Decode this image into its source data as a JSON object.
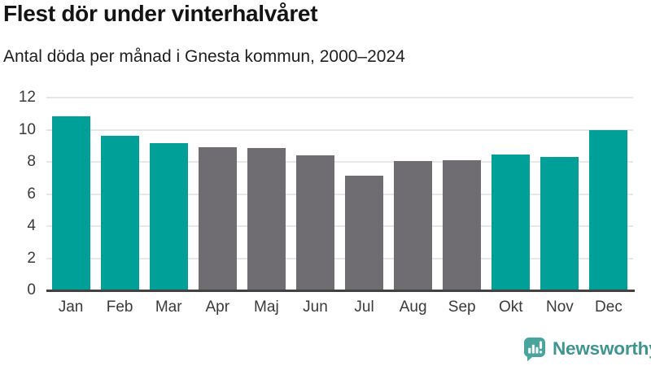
{
  "header": {
    "title": "Flest dör under vinterhalvåret",
    "subtitle": "Antal döda per månad i Gnesta kommun, 2000–2024"
  },
  "chart_data": {
    "type": "bar",
    "title": "Flest dör under vinterhalvåret",
    "subtitle": "Antal döda per månad i Gnesta kommun, 2000–2024",
    "categories": [
      "Jan",
      "Feb",
      "Mar",
      "Apr",
      "Maj",
      "Jun",
      "Jul",
      "Aug",
      "Sep",
      "Okt",
      "Nov",
      "Dec"
    ],
    "values": [
      10.85,
      9.6,
      9.15,
      8.9,
      8.85,
      8.4,
      7.15,
      8.05,
      8.1,
      8.45,
      8.3,
      10.0
    ],
    "bar_roles": [
      "winter",
      "winter",
      "winter",
      "summer",
      "summer",
      "summer",
      "summer",
      "summer",
      "summer",
      "winter",
      "winter",
      "winter"
    ],
    "colors": {
      "winter": "#00a099",
      "summer": "#6f6d72"
    },
    "xlabel": "",
    "ylabel": "",
    "ylim": [
      0,
      12
    ],
    "yticks": [
      0,
      2,
      4,
      6,
      8,
      10,
      12
    ],
    "grid": true,
    "legend_position": "none"
  },
  "footer": {
    "brand": "Newsworthy",
    "brand_color": "#3e948e",
    "icon": "speech-bubble-bar-chart-icon",
    "icon_color": "#48a59e"
  }
}
